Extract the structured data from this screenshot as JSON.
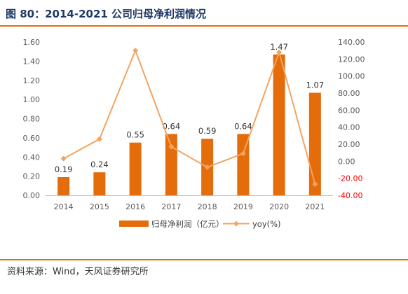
{
  "header": {
    "title": "图 80：2014-2021 公司归母净利润情况"
  },
  "footer": {
    "source": "资料来源：Wind，天风证券研究所"
  },
  "colors": {
    "bar": "#e46c0a",
    "line": "#f4a460",
    "rule": "#e46c0a",
    "negative_tick": "#ff0000"
  },
  "chart_data": {
    "type": "bar",
    "categories": [
      "2014",
      "2015",
      "2016",
      "2017",
      "2018",
      "2019",
      "2020",
      "2021"
    ],
    "series": [
      {
        "name": "归母净利润（亿元）",
        "type": "bar",
        "axis": "left",
        "values": [
          0.19,
          0.24,
          0.55,
          0.64,
          0.59,
          0.64,
          1.47,
          1.07
        ],
        "labels": [
          "0.19",
          "0.24",
          "0.55",
          "0.64",
          "0.59",
          "0.64",
          "1.47",
          "1.07"
        ]
      },
      {
        "name": "yoy(%)",
        "type": "line",
        "axis": "right",
        "values": [
          3,
          26,
          130,
          17,
          -7,
          9,
          128,
          -27
        ]
      }
    ],
    "y_left": {
      "lim": [
        0,
        1.6
      ],
      "ticks": [
        "0.00",
        "0.20",
        "0.40",
        "0.60",
        "0.80",
        "1.00",
        "1.20",
        "1.40",
        "1.60"
      ]
    },
    "y_right": {
      "lim": [
        -40,
        140
      ],
      "ticks": [
        "-40.00",
        "-20.00",
        "0.00",
        "20.00",
        "40.00",
        "60.00",
        "80.00",
        "100.00",
        "120.00",
        "140.00"
      ]
    },
    "grid": false,
    "legend": "bottom"
  }
}
